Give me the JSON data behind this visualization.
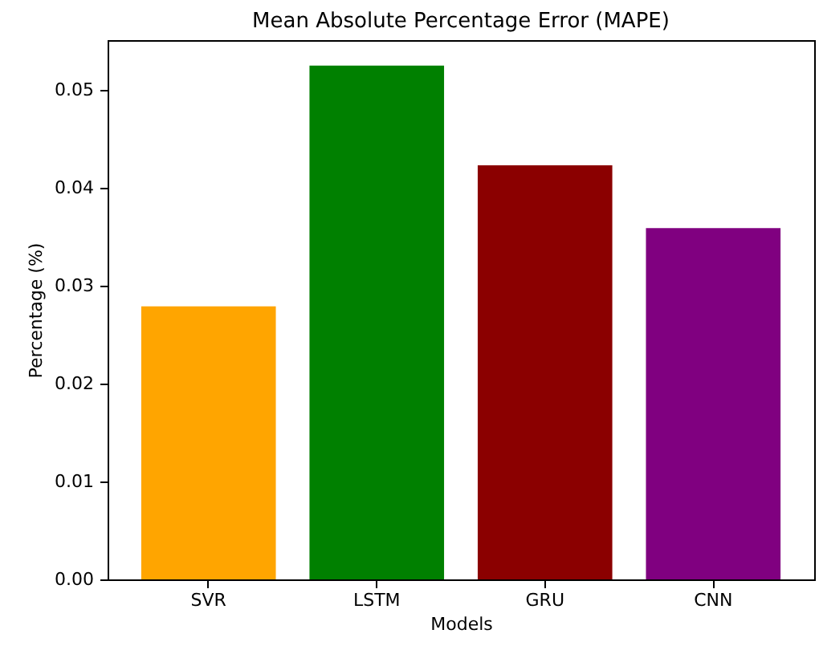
{
  "chart_data": {
    "type": "bar",
    "title": "Mean Absolute Percentage Error (MAPE)",
    "xlabel": "Models",
    "ylabel": "Percentage (%)",
    "categories": [
      "SVR",
      "LSTM",
      "GRU",
      "CNN"
    ],
    "values": [
      0.0279,
      0.0525,
      0.0423,
      0.0359
    ],
    "colors": [
      "#ffa500",
      "#008000",
      "#8b0000",
      "#800080"
    ],
    "ylim": [
      0,
      0.0551
    ],
    "yticks": [
      {
        "value": 0,
        "label": "0.00"
      },
      {
        "value": 0.01,
        "label": "0.01"
      },
      {
        "value": 0.02,
        "label": "0.02"
      },
      {
        "value": 0.03,
        "label": "0.03"
      },
      {
        "value": 0.04,
        "label": "0.04"
      },
      {
        "value": 0.05,
        "label": "0.05"
      }
    ],
    "grid": false
  }
}
